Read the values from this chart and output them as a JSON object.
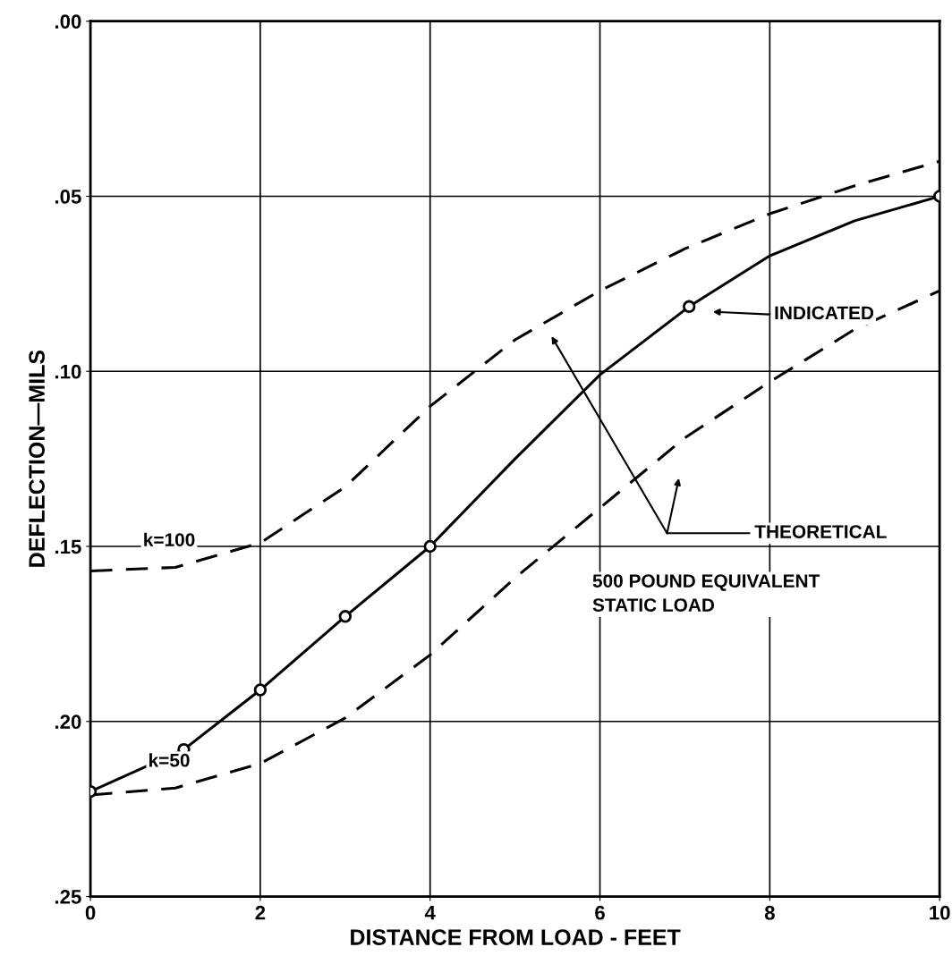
{
  "chart_data": {
    "type": "line",
    "xlabel": "DISTANCE FROM LOAD - FEET",
    "ylabel": "DEFLECTION—MILS",
    "xlim": [
      0,
      10
    ],
    "xticks": [
      0,
      2,
      4,
      6,
      8,
      10
    ],
    "ylim": [
      0.25,
      0
    ],
    "yticks": [
      {
        "value": 0,
        "label": ".00"
      },
      {
        "value": 0.05,
        "label": ".05"
      },
      {
        "value": 0.1,
        "label": ".10"
      },
      {
        "value": 0.15,
        "label": ".15"
      },
      {
        "value": 0.2,
        "label": ".20"
      },
      {
        "value": 0.25,
        "label": ".25"
      }
    ],
    "grid": true,
    "legend": false,
    "series": [
      {
        "color": "#000000",
        "line_style": "solid",
        "marker": "none",
        "x": [
          0,
          1.1,
          2,
          3,
          4,
          5,
          6,
          7.05,
          8,
          9,
          10
        ],
        "values": [
          0.22,
          0.208,
          0.191,
          0.17,
          0.15,
          0.125,
          0.101,
          0.0815,
          0.067,
          0.057,
          0.05
        ]
      },
      {
        "type": "scatter",
        "color": "#000000",
        "marker": "circle",
        "x": [
          0,
          1.1,
          2,
          3,
          4,
          7.05,
          10
        ],
        "values": [
          0.22,
          0.208,
          0.191,
          0.17,
          0.15,
          0.0815,
          0.05
        ]
      },
      {
        "name": "k=100",
        "color": "#000000",
        "line_style": "dashed",
        "marker": "none",
        "x": [
          0,
          1,
          2,
          3,
          4,
          5,
          6,
          7,
          8,
          9,
          10
        ],
        "values": [
          0.157,
          0.156,
          0.149,
          0.133,
          0.11,
          0.091,
          0.077,
          0.065,
          0.055,
          0.047,
          0.04
        ]
      },
      {
        "name": "k=50",
        "color": "#000000",
        "line_style": "dashed",
        "marker": "none",
        "x": [
          0,
          1,
          2,
          3,
          4,
          5,
          6,
          7,
          8,
          9,
          10
        ],
        "values": [
          0.221,
          0.219,
          0.212,
          0.199,
          0.181,
          0.159,
          0.139,
          0.119,
          0.103,
          0.088,
          0.077
        ]
      }
    ],
    "annotations": [
      "INDICATED",
      "THEORETICAL",
      "500 POUND EQUIVALENT\nSTATIC LOAD"
    ]
  }
}
